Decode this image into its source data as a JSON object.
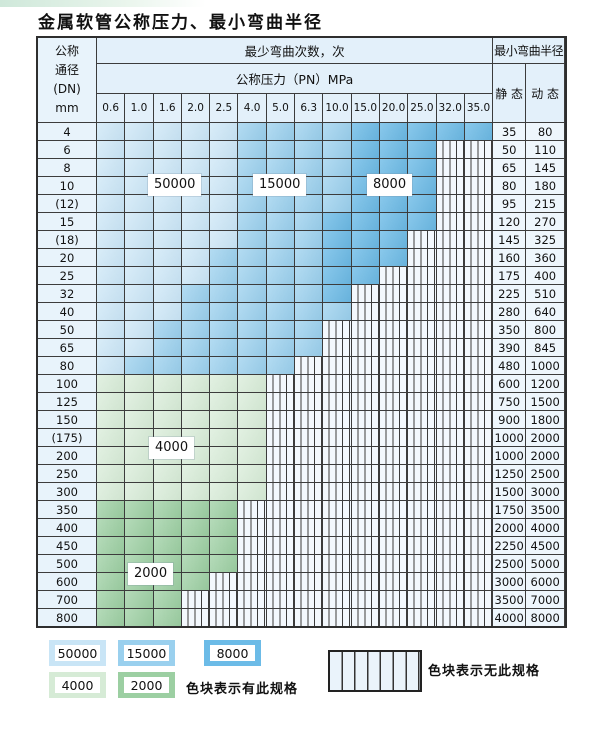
{
  "page": {
    "title": "金属软管公称压力、最小弯曲半径"
  },
  "table": {
    "corner": {
      "line1": "公称",
      "line2": "通径",
      "line3": "(DN)",
      "line4": "mm"
    },
    "top_header": "最少弯曲次数，次",
    "pressure_header": "公称压力（PN）MPa",
    "radius_header": "最小弯曲半径",
    "static_header": "静 态",
    "dynamic_header": "动 态",
    "pressure_columns": [
      "0.6",
      "1.0",
      "1.6",
      "2.0",
      "2.5",
      "4.0",
      "5.0",
      "6.3",
      "10.0",
      "15.0",
      "20.0",
      "25.0",
      "32.0",
      "35.0"
    ],
    "shade_meaning": {
      "L": "50000",
      "M": "15000",
      "D": "8000",
      "G": "4000",
      "E": "2000",
      "S": "无此规格"
    },
    "rows": [
      {
        "dn": "4",
        "cells": "LLLLLMMMMDDDDD",
        "static": "35",
        "dynamic": "80"
      },
      {
        "dn": "6",
        "cells": "LLLLLMMMMDDDSS",
        "static": "50",
        "dynamic": "110"
      },
      {
        "dn": "8",
        "cells": "LLLLLMMMMDDDSS",
        "static": "65",
        "dynamic": "145"
      },
      {
        "dn": "10",
        "cells": "LLLLLMMMMDDDSS",
        "static": "80",
        "dynamic": "180"
      },
      {
        "dn": "(12)",
        "cells": "LLLLLMMMMDDDSS",
        "static": "95",
        "dynamic": "215"
      },
      {
        "dn": "15",
        "cells": "LLLLLMMMDDDDSS",
        "static": "120",
        "dynamic": "270"
      },
      {
        "dn": "(18)",
        "cells": "LLLLLMMMDDDSSS",
        "static": "145",
        "dynamic": "325"
      },
      {
        "dn": "20",
        "cells": "LLLLMMMMDDDSSS",
        "static": "160",
        "dynamic": "360"
      },
      {
        "dn": "25",
        "cells": "LLLLMMMMDDSSSS",
        "static": "175",
        "dynamic": "400"
      },
      {
        "dn": "32",
        "cells": "LLLMMMMMDSSSSS",
        "static": "225",
        "dynamic": "510"
      },
      {
        "dn": "40",
        "cells": "LLLMMMMMMSSSSS",
        "static": "280",
        "dynamic": "640"
      },
      {
        "dn": "50",
        "cells": "LLMMMMMMSSSSSS",
        "static": "350",
        "dynamic": "800"
      },
      {
        "dn": "65",
        "cells": "LLMMMMMMSSSSSS",
        "static": "390",
        "dynamic": "845"
      },
      {
        "dn": "80",
        "cells": "LMMMMMMSSSSSSS",
        "static": "480",
        "dynamic": "1000"
      },
      {
        "dn": "100",
        "cells": "GGGGGGSSSSSSSS",
        "static": "600",
        "dynamic": "1200"
      },
      {
        "dn": "125",
        "cells": "GGGGGGSSSSSSSS",
        "static": "750",
        "dynamic": "1500"
      },
      {
        "dn": "150",
        "cells": "GGGGGGSSSSSSSS",
        "static": "900",
        "dynamic": "1800"
      },
      {
        "dn": "(175)",
        "cells": "GGGGGGSSSSSSSS",
        "static": "1000",
        "dynamic": "2000"
      },
      {
        "dn": "200",
        "cells": "GGGGGGSSSSSSSS",
        "static": "1000",
        "dynamic": "2000"
      },
      {
        "dn": "250",
        "cells": "GGGGGGSSSSSSSS",
        "static": "1250",
        "dynamic": "2500"
      },
      {
        "dn": "300",
        "cells": "GGGGGGSSSSSSSS",
        "static": "1500",
        "dynamic": "3000"
      },
      {
        "dn": "350",
        "cells": "EEEEESSSSSSSSS",
        "static": "1750",
        "dynamic": "3500"
      },
      {
        "dn": "400",
        "cells": "EEEEESSSSSSSSS",
        "static": "2000",
        "dynamic": "4000"
      },
      {
        "dn": "450",
        "cells": "EEEEESSSSSSSSS",
        "static": "2250",
        "dynamic": "4500"
      },
      {
        "dn": "500",
        "cells": "EEEEESSSSSSSSS",
        "static": "2500",
        "dynamic": "5000"
      },
      {
        "dn": "600",
        "cells": "EEEESSSSSSSSSS",
        "static": "3000",
        "dynamic": "6000"
      },
      {
        "dn": "700",
        "cells": "EEESSSSSSSSSSS",
        "static": "3500",
        "dynamic": "7000"
      },
      {
        "dn": "800",
        "cells": "EEESSSSSSSSSSS",
        "static": "4000",
        "dynamic": "8000"
      }
    ],
    "region_labels": [
      {
        "text": "50000"
      },
      {
        "text": "15000"
      },
      {
        "text": "8000"
      },
      {
        "text": "4000"
      },
      {
        "text": "2000"
      }
    ]
  },
  "legend": {
    "blocks": [
      {
        "value": "50000",
        "shade": "L"
      },
      {
        "value": "15000",
        "shade": "M"
      },
      {
        "value": "8000",
        "shade": "D"
      },
      {
        "value": "4000",
        "shade": "G"
      },
      {
        "value": "2000",
        "shade": "E"
      }
    ],
    "has_spec_text": "色块表示有此规格",
    "no_spec_text": "色块表示无此规格"
  },
  "colors": {
    "blue_light": "#c9e5f6",
    "blue_medium": "#9ad0ee",
    "blue_dark": "#6cbbe7",
    "green_light": "#d6ebd6",
    "green_medium": "#9ccfa2",
    "header_bg": "#e3f0fa",
    "dn_bg": "#e8f3fb",
    "value_bg": "#eef6fc",
    "stripe_bg": "#f3f8fd",
    "grid_line": "#3c3c3c"
  }
}
